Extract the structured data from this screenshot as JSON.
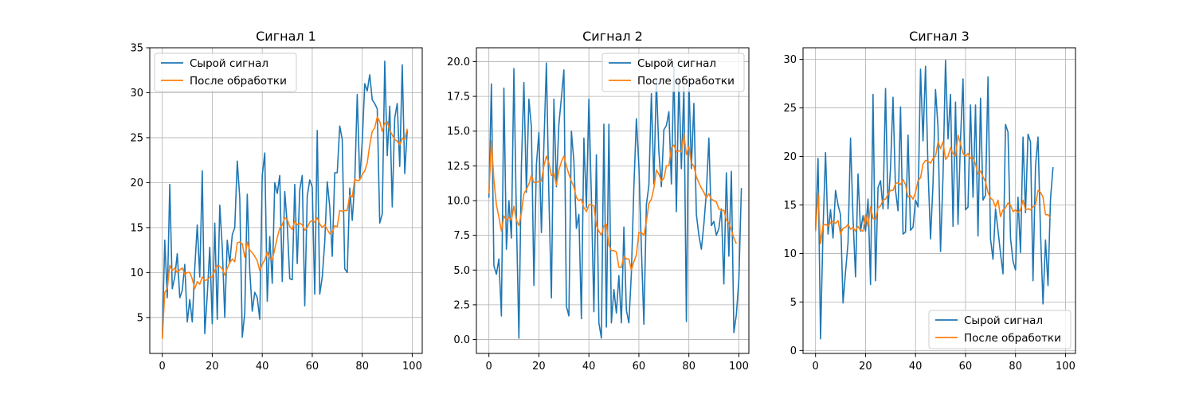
{
  "chart_data": [
    {
      "type": "line",
      "title": "Сигнал 1",
      "xlabel": "",
      "ylabel": "",
      "xlim": [
        -5,
        104
      ],
      "ylim": [
        1,
        35
      ],
      "xticks": [
        0,
        20,
        40,
        60,
        80,
        100
      ],
      "yticks": [
        5,
        10,
        15,
        20,
        25,
        30,
        35
      ],
      "grid": true,
      "legend": "upper-left",
      "series": [
        {
          "name": "Сырой сигнал",
          "color": "#1f77b4",
          "y": [
            2.8,
            13.6,
            7.2,
            19.8,
            8.2,
            9.5,
            12.1,
            7.2,
            8.0,
            10.9,
            4.5,
            7.0,
            4.5,
            10.5,
            15.3,
            9.5,
            21.3,
            3.2,
            7.5,
            12.8,
            4.3,
            15.5,
            4.8,
            17.5,
            12.8,
            5.0,
            13.6,
            11.0,
            14.2,
            15.0,
            22.4,
            18.3,
            2.8,
            5.5,
            18.7,
            10.2,
            5.7,
            7.8,
            7.2,
            4.8,
            20.8,
            23.3,
            6.8,
            14.0,
            8.8,
            20.0,
            18.8,
            20.8,
            9.0,
            19.0,
            15.3,
            9.3,
            9.2,
            19.8,
            11.0,
            19.2,
            20.8,
            6.3,
            18.5,
            20.3,
            19.5,
            7.6,
            25.8,
            7.6,
            9.5,
            13.4,
            20.1,
            17.3,
            11.8,
            21.1,
            21.1,
            26.3,
            24.8,
            10.4,
            10.0,
            19.4,
            15.8,
            20.0,
            29.8,
            20.3,
            24.6,
            31.0,
            30.2,
            32.0,
            29.2,
            28.8,
            28.2,
            15.5,
            16.5,
            33.5,
            23.0,
            28.5,
            17.3,
            27.2,
            28.8,
            21.8,
            33.1,
            21.0,
            25.8
          ],
          "x_start": 0
        },
        {
          "name": "После обработки",
          "color": "#ff7f0e",
          "y": [
            2.6,
            7.8,
            8.2,
            10.8,
            10.2,
            10.5,
            10.0,
            10.3,
            10.5,
            9.8,
            10.0,
            10.0,
            9.3,
            8.2,
            9.0,
            8.7,
            9.5,
            9.1,
            9.2,
            9.5,
            9.5,
            10.2,
            10.8,
            10.7,
            10.4,
            9.7,
            10.5,
            11.1,
            11.5,
            11.2,
            13.3,
            13.4,
            13.2,
            11.7,
            13.4,
            12.5,
            12.2,
            11.8,
            11.3,
            10.2,
            10.9,
            11.4,
            12.3,
            11.6,
            11.4,
            12.6,
            13.9,
            14.9,
            15.3,
            16.1,
            15.9,
            15.1,
            14.8,
            15.7,
            15.3,
            15.5,
            15.3,
            14.7,
            15.0,
            15.6,
            15.8,
            15.6,
            16.1,
            15.4,
            15.0,
            15.3,
            14.8,
            14.3,
            14.5,
            15.2,
            15.1,
            16.9,
            16.8,
            16.9,
            16.9,
            18.6,
            18.4,
            20.4,
            20.2,
            20.3,
            20.9,
            21.3,
            22.2,
            24.2,
            25.7,
            26.1,
            27.3,
            26.8,
            25.7,
            26.6,
            26.8,
            25.8,
            25.3,
            24.8,
            24.6,
            24.2,
            24.9,
            24.8,
            26.0
          ],
          "x_start": 0
        }
      ]
    },
    {
      "type": "line",
      "title": "Сигнал 2",
      "xlabel": "",
      "ylabel": "",
      "xlim": [
        -5,
        104
      ],
      "ylim": [
        -1,
        21
      ],
      "xticks": [
        0,
        20,
        40,
        60,
        80,
        100
      ],
      "yticks": [
        0.0,
        2.5,
        5.0,
        7.5,
        10.0,
        12.5,
        15.0,
        17.5,
        20.0
      ],
      "grid": true,
      "legend": "upper-right",
      "series": [
        {
          "name": "Сырой сигнал",
          "color": "#1f77b4",
          "y": [
            10.2,
            18.4,
            5.3,
            4.7,
            5.8,
            1.7,
            18.1,
            6.5,
            10.0,
            7.3,
            19.5,
            8.8,
            0.1,
            12.5,
            18.5,
            10.6,
            17.3,
            15.3,
            3.9,
            12.6,
            14.9,
            7.7,
            14.0,
            19.9,
            10.3,
            3.0,
            17.3,
            11.0,
            15.5,
            17.4,
            19.4,
            2.4,
            1.7,
            15.0,
            12.8,
            8.0,
            9.0,
            1.5,
            14.5,
            9.5,
            17.3,
            10.2,
            2.0,
            13.3,
            1.2,
            0.1,
            15.5,
            0.9,
            15.5,
            1.2,
            3.6,
            1.9,
            4.6,
            1.2,
            8.1,
            2.1,
            1.2,
            4.8,
            11.0,
            15.9,
            12.5,
            6.6,
            1.1,
            9.7,
            11.1,
            17.7,
            11.2,
            18.7,
            13.5,
            11.0,
            15.1,
            15.4,
            16.4,
            11.2,
            19.6,
            9.2,
            18.8,
            12.3,
            18.2,
            1.3,
            18.7,
            12.3,
            17.0,
            9.0,
            7.5,
            6.5,
            8.3,
            10.6,
            14.5,
            8.2,
            8.5,
            7.5,
            8.0,
            9.4,
            4.0,
            12.0,
            6.0,
            12.1,
            0.5,
            1.8,
            4.3,
            10.9
          ],
          "x_start": 0
        },
        {
          "name": "После обработки",
          "color": "#ff7f0e",
          "y": [
            10.5,
            14.3,
            11.5,
            9.7,
            8.8,
            7.8,
            8.9,
            8.6,
            8.8,
            8.6,
            9.6,
            8.6,
            8.2,
            9.1,
            10.5,
            10.8,
            11.2,
            11.8,
            11.3,
            11.3,
            11.4,
            11.4,
            12.5,
            13.2,
            12.7,
            11.8,
            12.0,
            11.1,
            12.2,
            12.8,
            13.2,
            12.5,
            11.9,
            11.4,
            11.0,
            10.2,
            10.0,
            10.1,
            9.5,
            9.2,
            9.7,
            9.7,
            9.6,
            8.2,
            7.8,
            7.5,
            8.2,
            8.3,
            6.8,
            6.4,
            6.4,
            6.3,
            5.2,
            5.2,
            6.0,
            5.8,
            5.8,
            5.0,
            5.6,
            6.1,
            7.7,
            7.7,
            7.5,
            8.5,
            9.8,
            10.1,
            10.9,
            12.2,
            11.9,
            11.4,
            11.6,
            12.5,
            12.5,
            13.8,
            14.0,
            13.5,
            13.6,
            13.5,
            14.8,
            13.3,
            13.9,
            12.7,
            12.5,
            11.7,
            11.3,
            10.9,
            10.6,
            10.2,
            10.5,
            10.1,
            10.0,
            9.9,
            9.4,
            9.3,
            9.3,
            8.6,
            8.4,
            7.9,
            7.3,
            6.9
          ],
          "x_start": 0
        }
      ]
    },
    {
      "type": "line",
      "title": "Сигнал 3",
      "xlabel": "",
      "ylabel": "",
      "xlim": [
        -5,
        104
      ],
      "ylim": [
        -0.3,
        31.2
      ],
      "xticks": [
        0,
        20,
        40,
        60,
        80,
        100
      ],
      "yticks": [
        0,
        5,
        10,
        15,
        20,
        25,
        30
      ],
      "grid": true,
      "legend": "lower-right",
      "series": [
        {
          "name": "Сырой сигнал",
          "color": "#1f77b4",
          "y": [
            12.5,
            19.8,
            1.2,
            12.5,
            20.4,
            12.0,
            14.5,
            11.6,
            16.5,
            15.0,
            14.0,
            4.9,
            8.1,
            11.1,
            21.9,
            13.6,
            7.6,
            18.2,
            12.3,
            13.9,
            12.3,
            15.6,
            6.8,
            26.4,
            7.2,
            16.8,
            17.5,
            14.6,
            27.0,
            14.6,
            18.8,
            26.1,
            16.5,
            14.4,
            25.1,
            12.0,
            12.2,
            22.2,
            12.4,
            12.7,
            15.5,
            14.8,
            29.0,
            21.6,
            29.3,
            18.7,
            11.5,
            17.2,
            26.9,
            23.0,
            10.2,
            18.0,
            29.9,
            21.8,
            26.4,
            12.8,
            25.6,
            13.0,
            21.8,
            28.0,
            14.5,
            14.8,
            25.3,
            15.8,
            25.3,
            11.8,
            26.0,
            15.5,
            16.0,
            28.2,
            11.5,
            9.4,
            14.6,
            12.4,
            10.0,
            7.9,
            23.3,
            22.5,
            11.6,
            9.2,
            8.3,
            15.8,
            10.1,
            22.0,
            14.2,
            22.3,
            21.5,
            7.2,
            19.0,
            22.0,
            12.2,
            4.8,
            11.4,
            6.7,
            15.6,
            18.9
          ],
          "x_start": 0
        },
        {
          "name": "После обработки",
          "color": "#ff7f0e",
          "y": [
            12.3,
            16.2,
            11.0,
            12.9,
            13.0,
            12.8,
            13.2,
            13.3,
            13.1,
            13.4,
            12.0,
            12.6,
            12.7,
            13.0,
            12.5,
            12.7,
            12.3,
            12.8,
            12.4,
            12.3,
            14.0,
            12.8,
            14.8,
            13.6,
            13.5,
            14.7,
            14.9,
            15.5,
            15.6,
            16.1,
            16.5,
            16.5,
            17.2,
            17.3,
            17.1,
            17.6,
            17.1,
            15.8,
            16.0,
            15.6,
            16.3,
            17.5,
            17.8,
            19.2,
            19.6,
            19.5,
            19.3,
            19.8,
            20.0,
            21.5,
            20.8,
            21.5,
            19.7,
            20.0,
            20.9,
            20.3,
            20.0,
            22.2,
            21.3,
            20.3,
            20.0,
            20.3,
            19.8,
            19.9,
            19.2,
            18.2,
            18.5,
            17.9,
            17.4,
            16.3,
            15.7,
            15.5,
            14.8,
            15.5,
            13.8,
            14.5,
            14.7,
            15.2,
            15.0,
            14.3,
            14.5,
            14.2,
            14.5,
            15.5,
            14.5,
            14.6,
            14.5,
            14.8,
            15.0,
            16.5,
            16.3,
            15.8,
            14.0,
            14.0,
            13.7
          ],
          "x_start": 0
        }
      ]
    }
  ]
}
